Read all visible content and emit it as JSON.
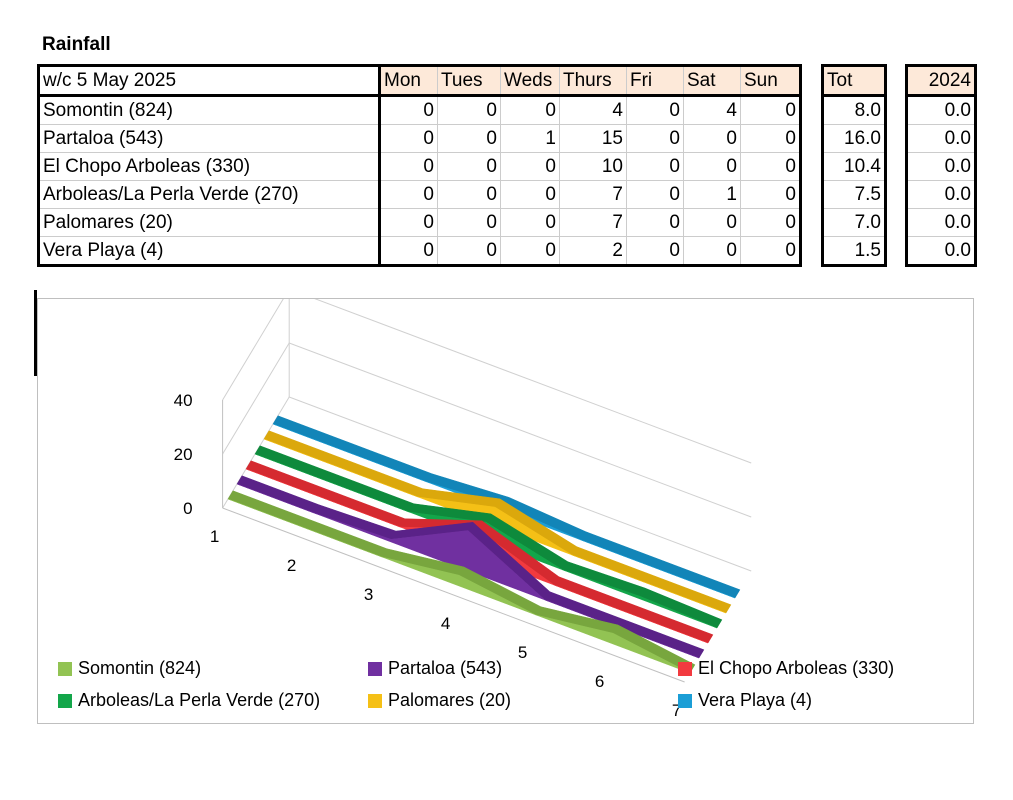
{
  "title": "Rainfall",
  "table": {
    "week_label": "w/c 5 May 2025",
    "days": [
      "Mon",
      "Tues",
      "Weds",
      "Thurs",
      "Fri",
      "Sat",
      "Sun"
    ],
    "total_header": "Tot",
    "prev_header": "2024",
    "rows": [
      {
        "station": "Somontin (824)",
        "values": [
          "0",
          "0",
          "0",
          "4",
          "0",
          "4",
          "0"
        ],
        "total": "8.0",
        "prev": "0.0"
      },
      {
        "station": "Partaloa (543)",
        "values": [
          "0",
          "0",
          "1",
          "15",
          "0",
          "0",
          "0"
        ],
        "total": "16.0",
        "prev": "0.0"
      },
      {
        "station": "El Chopo Arboleas (330)",
        "values": [
          "0",
          "0",
          "0",
          "10",
          "0",
          "0",
          "0"
        ],
        "total": "10.4",
        "prev": "0.0"
      },
      {
        "station": "Arboleas/La Perla Verde (270)",
        "values": [
          "0",
          "0",
          "0",
          "7",
          "0",
          "1",
          "0"
        ],
        "total": "7.5",
        "prev": "0.0"
      },
      {
        "station": "Palomares (20)",
        "values": [
          "0",
          "0",
          "0",
          "7",
          "0",
          "0",
          "0"
        ],
        "total": "7.0",
        "prev": "0.0"
      },
      {
        "station": "Vera Playa (4)",
        "values": [
          "0",
          "0",
          "0",
          "2",
          "0",
          "0",
          "0"
        ],
        "total": "1.5",
        "prev": "0.0"
      }
    ]
  },
  "chart_data": {
    "type": "area",
    "title": "",
    "xlabel": "",
    "ylabel": "",
    "categories": [
      "1",
      "2",
      "3",
      "4",
      "5",
      "6",
      "7"
    ],
    "yticks": [
      "0",
      "20",
      "40"
    ],
    "ylim": [
      0,
      40
    ],
    "grid": true,
    "legend_position": "bottom",
    "series": [
      {
        "name": "Somontin (824)",
        "values": [
          0,
          0,
          0,
          4,
          0,
          4,
          0
        ],
        "color": "#92c353",
        "top_color": "#78a63e"
      },
      {
        "name": "Partaloa (543)",
        "values": [
          0,
          0,
          1,
          15,
          0,
          0,
          0
        ],
        "color": "#7030a0",
        "top_color": "#5a2288"
      },
      {
        "name": "El Chopo Arboleas (330)",
        "values": [
          0,
          0,
          0,
          10,
          0,
          0,
          0
        ],
        "color": "#f23a3f",
        "top_color": "#d52a30"
      },
      {
        "name": "Arboleas/La Perla Verde (270)",
        "values": [
          0,
          0,
          0,
          7,
          0,
          1,
          0
        ],
        "color": "#13a64a",
        "top_color": "#0e8a3c"
      },
      {
        "name": "Palomares (20)",
        "values": [
          0,
          0,
          0,
          7,
          0,
          0,
          0
        ],
        "color": "#f5c016",
        "top_color": "#dba80c"
      },
      {
        "name": "Vera Playa (4)",
        "values": [
          0,
          0,
          0,
          2,
          0,
          0,
          0
        ],
        "color": "#1b9ed6",
        "top_color": "#1285b8"
      }
    ]
  }
}
